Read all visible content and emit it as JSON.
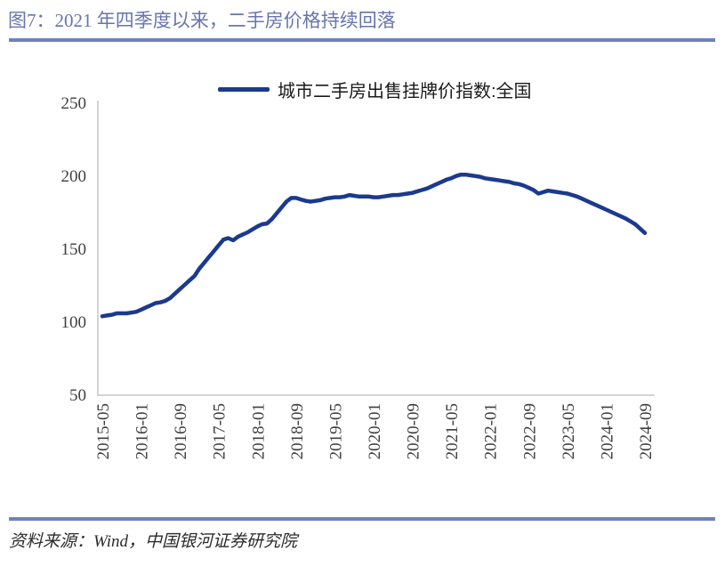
{
  "header": {
    "title": "图7：2021 年四季度以来，二手房价格持续回落"
  },
  "legend": {
    "label": "城市二手房出售挂牌价指数:全国"
  },
  "footer": {
    "source": "资料来源：Wind，中国银河证券研究院"
  },
  "colors": {
    "title_text": "#6775AE",
    "accent_rule": "#6E83BA",
    "series_line": "#1B3A8F",
    "axis_line": "#D4D4D4",
    "axis_text": "#3F3F3F"
  },
  "chart_data": {
    "type": "line",
    "title": "",
    "xlabel": "",
    "ylabel": "",
    "grid": false,
    "legend_position": "top-center",
    "ylim": [
      50,
      250
    ],
    "y_ticks": [
      250,
      200,
      150,
      100,
      50
    ],
    "x_start": "2015-05",
    "x_step_months": 1,
    "x_tick_every_months": 8,
    "x_tick_labels": [
      "2015-05",
      "2016-01",
      "2016-09",
      "2017-05",
      "2018-01",
      "2018-09",
      "2019-05",
      "2020-01",
      "2020-09",
      "2021-05",
      "2022-01",
      "2022-09",
      "2023-05",
      "2024-01",
      "2024-09"
    ],
    "series": [
      {
        "name": "城市二手房出售挂牌价指数:全国",
        "color": "#1B3A8F",
        "values": [
          103.5,
          104,
          104.5,
          105.5,
          105.5,
          105.5,
          106,
          106.5,
          108,
          109.5,
          111,
          112.5,
          113,
          114,
          116,
          119,
          122,
          125,
          128,
          131,
          136,
          140,
          144,
          148,
          152,
          156,
          157,
          155.5,
          158,
          159.5,
          161,
          163,
          165,
          166.5,
          167,
          170,
          174,
          178,
          182,
          184.5,
          184.5,
          183.5,
          182.5,
          182,
          182.5,
          183,
          184,
          184.5,
          185,
          185,
          185.5,
          186.5,
          186,
          185.5,
          185.5,
          185.5,
          185,
          185,
          185.5,
          186,
          186.5,
          186.5,
          187,
          187.5,
          188,
          189,
          190,
          191,
          192.5,
          194,
          195.5,
          197,
          198,
          199.5,
          200.5,
          200.5,
          200,
          199.5,
          199,
          198,
          197.5,
          197,
          196.5,
          196,
          195.5,
          194.5,
          194,
          193,
          191.5,
          190,
          187.5,
          188.5,
          189.5,
          189,
          188.5,
          188,
          187.5,
          186.5,
          185.5,
          184,
          182.5,
          181,
          179.5,
          178,
          176.5,
          175,
          173.5,
          172,
          170.5,
          168.5,
          166.5,
          163.5,
          160.5
        ]
      }
    ]
  }
}
